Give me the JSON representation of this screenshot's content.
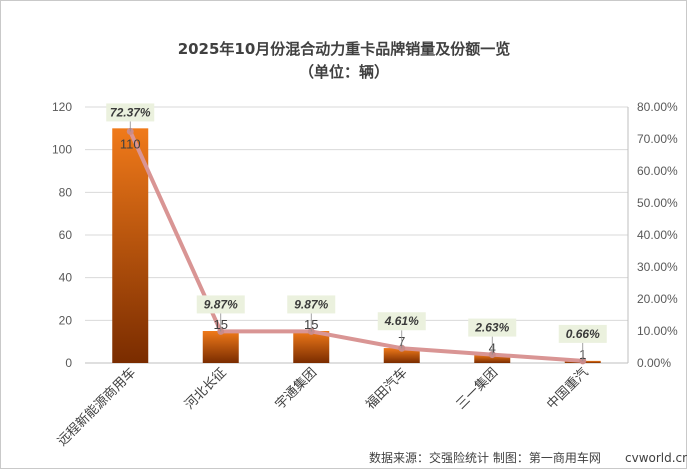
{
  "chart_data": {
    "type": "bar",
    "title": "2025年10月份混合动力重卡品牌销量及份额一览",
    "subtitle": "（单位：辆）",
    "categories": [
      "远程新能源商用车",
      "河北长征",
      "宇通集团",
      "福田汽车",
      "三一集团",
      "中国重汽"
    ],
    "series": [
      {
        "name": "销量",
        "type": "bar",
        "axis": "left",
        "values": [
          110,
          15,
          15,
          7,
          4,
          1
        ],
        "labels": [
          "110",
          "15",
          "15",
          "7",
          "4",
          "1"
        ]
      },
      {
        "name": "份额",
        "type": "line",
        "axis": "right",
        "values": [
          72.37,
          9.87,
          9.87,
          4.61,
          2.63,
          0.66
        ],
        "labels": [
          "72.37%",
          "9.87%",
          "9.87%",
          "4.61%",
          "2.63%",
          "0.66%"
        ]
      }
    ],
    "y_left": {
      "lim": [
        0,
        120
      ],
      "ticks": [
        "0",
        "20",
        "40",
        "60",
        "80",
        "100",
        "120"
      ]
    },
    "y_right": {
      "lim": [
        0,
        80
      ],
      "ticks": [
        "0.00%",
        "10.00%",
        "20.00%",
        "30.00%",
        "40.00%",
        "50.00%",
        "60.00%",
        "70.00%",
        "80.00%"
      ]
    },
    "grid": true
  },
  "source_text": "数据来源：交强险统计 制图：第一商用车网",
  "watermark": "cvworld.cn",
  "colors": {
    "bar_top": "#f07a1a",
    "bar_bottom": "#7a2c00",
    "line": "#d99594",
    "label_bg": "#ebf1de",
    "grid": "#d9d9d9"
  }
}
